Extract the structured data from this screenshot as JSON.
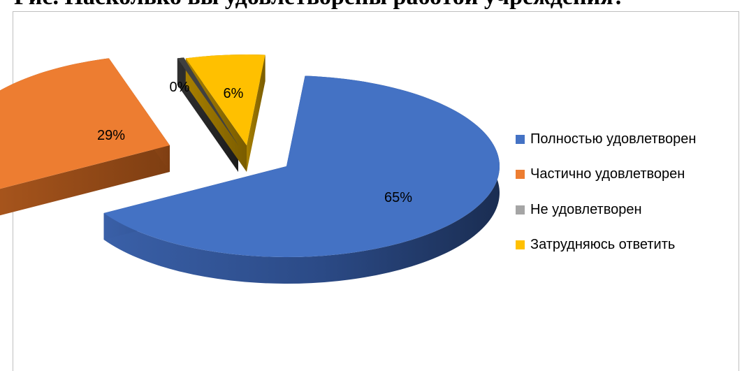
{
  "document": {
    "cut_off_heading": "Рис. Насколько вы удовлетворены работой учреждения?"
  },
  "chart_data": {
    "type": "pie",
    "style": "3d-exploded",
    "title": "",
    "legend_position": "right",
    "slices": [
      {
        "name": "Полностью удовлетворен",
        "value": 65,
        "label": "65%",
        "color": "#4472C4"
      },
      {
        "name": "Частично удовлетворен",
        "value": 29,
        "label": "29%",
        "color": "#ED7D31"
      },
      {
        "name": "Не удовлетворен",
        "value": 0,
        "label": "0%",
        "color": "#A5A5A5"
      },
      {
        "name": "Затрудняюсь ответить",
        "value": 6,
        "label": "6%",
        "color": "#FFC000"
      }
    ]
  }
}
